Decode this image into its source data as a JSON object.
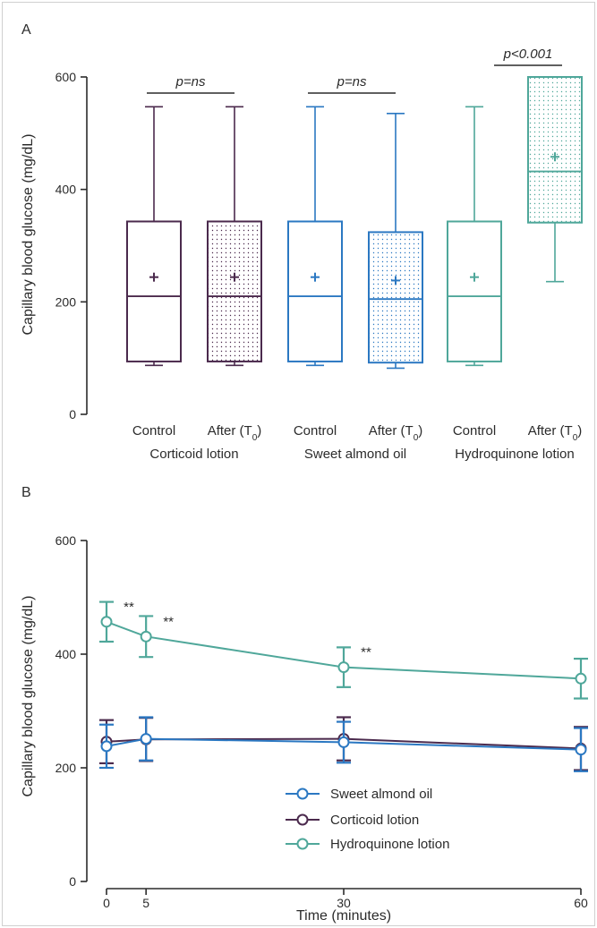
{
  "panels": [
    {
      "label": "A",
      "type": "box",
      "ylabel": "Capillary blood glucose (mg/dL)",
      "ylim": [
        0,
        600
      ],
      "yticks": [
        0,
        200,
        400,
        600
      ],
      "groups": [
        {
          "label": "Corticoid lotion",
          "color": "#4b2a4d",
          "significance": "p=ns",
          "boxes": [
            {
              "label": "Control",
              "min": 87,
              "q1": 94,
              "median": 210,
              "q3": 343,
              "max": 547,
              "mean": 244,
              "dotted": false
            },
            {
              "label": "After (T0)",
              "min": 87,
              "q1": 94,
              "median": 210,
              "q3": 343,
              "max": 547,
              "mean": 244,
              "dotted": true
            }
          ]
        },
        {
          "label": "Sweet almond oil",
          "color": "#2b78c2",
          "significance": "p=ns",
          "boxes": [
            {
              "label": "Control",
              "min": 87,
              "q1": 94,
              "median": 210,
              "q3": 343,
              "max": 547,
              "mean": 244,
              "dotted": false
            },
            {
              "label": "After (T0)",
              "min": 82,
              "q1": 92,
              "median": 205,
              "q3": 324,
              "max": 535,
              "mean": 238,
              "dotted": true
            }
          ]
        },
        {
          "label": "Hydroquinone lotion",
          "color": "#4fa79a",
          "significance": "p<0.001",
          "boxes": [
            {
              "label": "Control",
              "min": 87,
              "q1": 94,
              "median": 210,
              "q3": 343,
              "max": 547,
              "mean": 244,
              "dotted": false
            },
            {
              "label": "After (T0)",
              "min": 236,
              "q1": 341,
              "median": 432,
              "q3": 600,
              "max": 600,
              "mean": 458,
              "dotted": true
            }
          ]
        }
      ]
    },
    {
      "label": "B",
      "type": "line",
      "ylabel": "Capillary blood glucose (mg/dL)",
      "xlabel": "Time (minutes)",
      "ylim": [
        0,
        600
      ],
      "yticks": [
        0,
        200,
        400,
        600
      ],
      "xticks": [
        0,
        5,
        30,
        60
      ],
      "series": [
        {
          "name": "Sweet almond oil",
          "color": "#2b78c2",
          "points": [
            {
              "x": 0,
              "y": 238,
              "err": 38
            },
            {
              "x": 5,
              "y": 251,
              "err": 38
            },
            {
              "x": 30,
              "y": 245,
              "err": 36
            },
            {
              "x": 60,
              "y": 232,
              "err": 38
            }
          ]
        },
        {
          "name": "Corticoid lotion",
          "color": "#4b2a4d",
          "points": [
            {
              "x": 0,
              "y": 246,
              "err": 38
            },
            {
              "x": 5,
              "y": 250,
              "err": 38
            },
            {
              "x": 30,
              "y": 251,
              "err": 38
            },
            {
              "x": 60,
              "y": 234,
              "err": 38
            }
          ]
        },
        {
          "name": "Hydroquinone lotion",
          "color": "#4fa79a",
          "points": [
            {
              "x": 0,
              "y": 457,
              "err": 35,
              "mark": "**"
            },
            {
              "x": 5,
              "y": 431,
              "err": 36,
              "mark": "**"
            },
            {
              "x": 30,
              "y": 377,
              "err": 35,
              "mark": "**"
            },
            {
              "x": 60,
              "y": 357,
              "err": 35,
              "mark": "**"
            }
          ]
        }
      ]
    }
  ]
}
